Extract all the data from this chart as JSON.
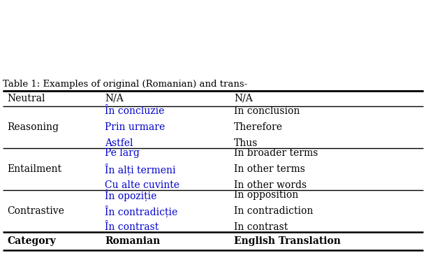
{
  "col_headers": [
    "Category",
    "Romanian",
    "English Translation"
  ],
  "rows": [
    {
      "category": "Contrastive",
      "romanian": [
        "În contrast",
        "În contradicție",
        "În opoziție"
      ],
      "english": [
        "In contrast",
        "In contradiction",
        "In opposition"
      ],
      "romanian_color": "#0000cc"
    },
    {
      "category": "Entailment",
      "romanian": [
        "Cu alte cuvinte",
        "În alți termeni",
        "Pe larg"
      ],
      "english": [
        "In other words",
        "In other terms",
        "In broader terms"
      ],
      "romanian_color": "#0000cc"
    },
    {
      "category": "Reasoning",
      "romanian": [
        "Astfel",
        "Prin urmare",
        "În concluzie"
      ],
      "english": [
        "Thus",
        "Therefore",
        "In conclusion"
      ],
      "romanian_color": "#0000cc"
    },
    {
      "category": "Neutral",
      "romanian": [
        "N/A"
      ],
      "english": [
        "N/A"
      ],
      "romanian_color": "#000000"
    }
  ],
  "caption": "Table 1: Examples of original (Romanian) and trans-",
  "background_color": "#ffffff",
  "body_font_size": 10,
  "header_font_size": 10,
  "caption_font_size": 9.5
}
